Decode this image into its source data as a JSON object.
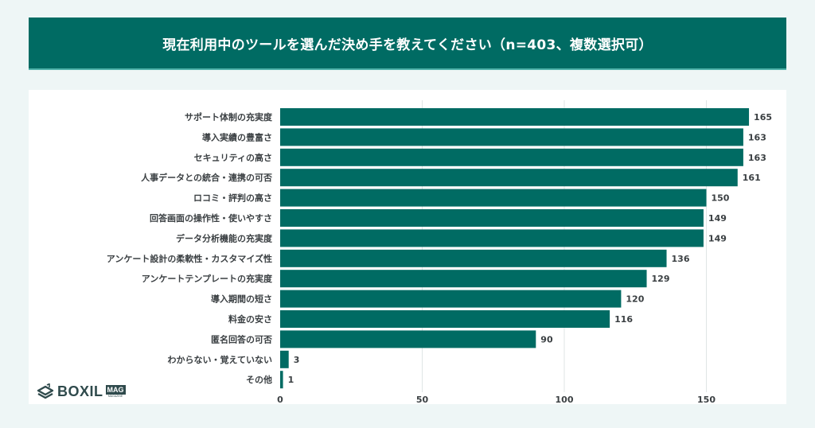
{
  "header": {
    "title": "現在利用中のツールを選んだ決め手を教えてください（n=403、複数選択可）"
  },
  "logo": {
    "brand": "BOXIL",
    "badge": "MAG",
    "subtitle": "MAGAZINE"
  },
  "colors": {
    "bar": "#006b63",
    "header_bg": "#006b63",
    "gridline": "#dfe5e5",
    "page_bg": "#eef6f6"
  },
  "chart_data": {
    "type": "bar",
    "orientation": "horizontal",
    "title": "現在利用中のツールを選んだ決め手を教えてください（n=403、複数選択可）",
    "xlabel": "",
    "ylabel": "",
    "xlim": [
      0,
      175
    ],
    "xticks": [
      0,
      50,
      100,
      150
    ],
    "tick_labels": [
      "0",
      "50",
      "100",
      "150"
    ],
    "grid": true,
    "categories": [
      "サポート体制の充実度",
      "導入実績の豊富さ",
      "セキュリティの高さ",
      "人事データとの統合・連携の可否",
      "ロコミ・評判の高さ",
      "回答画面の操作性・使いやすさ",
      "データ分析機能の充実度",
      "アンケート設計の柔軟性・カスタマイズ性",
      "アンケートテンプレートの充実度",
      "導入期間の短さ",
      "料金の安さ",
      "匿名回答の可否",
      "わからない・覚えていない",
      "その他"
    ],
    "values": [
      165,
      163,
      163,
      161,
      150,
      149,
      149,
      136,
      129,
      120,
      116,
      90,
      3,
      1
    ]
  }
}
